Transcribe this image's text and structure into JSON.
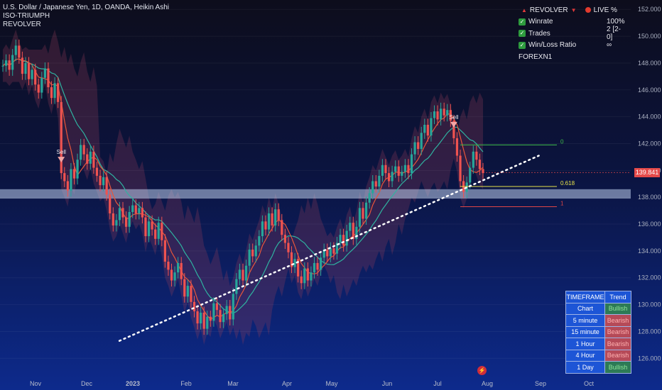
{
  "header": {
    "line1": "U.S. Dollar / Japanese Yen, 1D, OANDA, Heikin Ashi",
    "line2": "ISO-TRIUMPH",
    "line3": "REVOLVER"
  },
  "stats_panel": {
    "title": "REVOLVER",
    "live": "LIVE %",
    "rows": [
      {
        "label": "Winrate",
        "value": "100%"
      },
      {
        "label": "Trades",
        "value": "2 [2-0]"
      },
      {
        "label": "Win/Loss Ratio",
        "value": "∞"
      }
    ],
    "footer": "FOREXN1"
  },
  "trend_table": {
    "header": [
      "TIMEFRAME",
      "Trend"
    ],
    "rows": [
      {
        "tf": "Chart",
        "trend": "Bullish"
      },
      {
        "tf": "5 minute",
        "trend": "Bearish"
      },
      {
        "tf": "15 minute",
        "trend": "Bearish"
      },
      {
        "tf": "1 Hour",
        "trend": "Bearish"
      },
      {
        "tf": "4 Hour",
        "trend": "Bearish"
      },
      {
        "tf": "1 Day",
        "trend": "Bullish"
      }
    ]
  },
  "colors": {
    "bull": "#26a69a",
    "bear": "#ef5350",
    "bull_trend": "#2d7a56",
    "bear_trend": "#b54a58"
  },
  "chart_data": {
    "type": "candlestick",
    "symbol": "USDJPY",
    "y_ticks": [
      126,
      128,
      130,
      132,
      134,
      136,
      138,
      140,
      142,
      144,
      146,
      148,
      150,
      152
    ],
    "y_tick_labels": [
      "126.000",
      "128.000",
      "130.000",
      "132.000",
      "134.000",
      "136.000",
      "138.000",
      "140.000",
      "142.000",
      "144.000",
      "146.000",
      "148.000",
      "150.000",
      "152.000"
    ],
    "ylim": [
      124.8,
      152.7
    ],
    "x_labels": [
      "Nov",
      "Dec",
      "2023",
      "Feb",
      "Mar",
      "Apr",
      "May",
      "Jun",
      "Jul",
      "Aug",
      "Sep",
      "Oct"
    ],
    "last_price": "139.841",
    "close_series": [
      147.8,
      148.2,
      147.5,
      148.6,
      149.3,
      148.4,
      147.2,
      148.0,
      146.8,
      147.5,
      146.4,
      145.8,
      146.9,
      147.6,
      146.2,
      145.4,
      146.5,
      145.1,
      139.8,
      139.2,
      138.5,
      140.1,
      139.4,
      140.8,
      141.9,
      141.2,
      140.5,
      141.4,
      140.2,
      139.6,
      138.9,
      139.5,
      138.2,
      136.8,
      135.9,
      136.3,
      137.2,
      136.5,
      135.8,
      136.9,
      137.4,
      136.8,
      137.2,
      136.5,
      135.1,
      136.2,
      135.6,
      134.9,
      136.1,
      134.8,
      133.2,
      132.6,
      131.8,
      132.4,
      133.1,
      131.9,
      130.6,
      131.4,
      130.2,
      129.5,
      128.6,
      129.4,
      128.2,
      129.1,
      128.8,
      130.1,
      129.6,
      128.7,
      129.3,
      129.9,
      128.9,
      130.8,
      131.9,
      132.6,
      131.8,
      132.9,
      134.1,
      133.6,
      134.4,
      135.1,
      136.2,
      135.6,
      136.8,
      135.9,
      137.1,
      136.3,
      135.2,
      134.6,
      133.9,
      132.8,
      133.4,
      132.1,
      131.6,
      132.7,
      131.8,
      132.4,
      133.1,
      132.6,
      133.5,
      134.1,
      133.6,
      134.2,
      133.8,
      134.6,
      135.2,
      134.4,
      135.5,
      136.1,
      134.9,
      135.8,
      137.2,
      136.4,
      137.6,
      138.3,
      139.2,
      138.8,
      139.6,
      140.4,
      139.8,
      139.2,
      139.9,
      140.3,
      139.6,
      139.9,
      140.4,
      139.8,
      141.2,
      142.1,
      141.6,
      142.8,
      143.4,
      142.6,
      143.9,
      144.4,
      143.8,
      144.6,
      144.1,
      144.5,
      143.7,
      142.4,
      141.1,
      139.2,
      138.4,
      139.1,
      140.2,
      141.4,
      140.8,
      140.1,
      139.8
    ],
    "horizontal_levels": [
      {
        "label": "0",
        "value": 141.9
      },
      {
        "label": "0.618",
        "value": 138.8
      },
      {
        "label": "1",
        "value": 137.3
      }
    ],
    "signals": [
      {
        "label": "Sell",
        "index": 18
      },
      {
        "label": "Sell",
        "index": 139
      }
    ],
    "support_zone": [
      137.9,
      138.6
    ],
    "trendline": [
      {
        "date": "2022-12-23",
        "price": 127.3
      },
      {
        "date": "2023-08-31",
        "price": 141.1
      }
    ]
  }
}
